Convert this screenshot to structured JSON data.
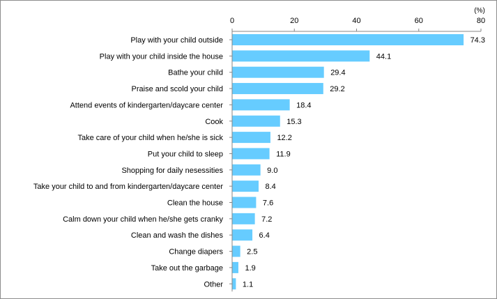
{
  "chart_data": {
    "type": "bar",
    "orientation": "horizontal",
    "title": "",
    "xlabel": "",
    "ylabel": "",
    "unit": "(%)",
    "xlim": [
      0,
      80
    ],
    "ticks": [
      0,
      20,
      40,
      60,
      80
    ],
    "tick_labels": [
      "0",
      "20",
      "40",
      "60",
      "80"
    ],
    "grid": false,
    "bar_color": "#66CCFF",
    "categories": [
      "Play with your child outside",
      "Play with your child inside the house",
      "Bathe your child",
      "Praise and scold your child",
      "Attend events of kindergarten/daycare center",
      "Cook",
      "Take care of your child when he/she is sick",
      "Put your child to sleep",
      "Shopping for daily nesessities",
      "Take your child to and from kindergarten/daycare center",
      "Clean the house",
      "Calm down your child when he/she gets cranky",
      "Clean and wash the dishes",
      "Change diapers",
      "Take out the garbage",
      "Other"
    ],
    "values": [
      74.3,
      44.1,
      29.4,
      29.2,
      18.4,
      15.3,
      12.2,
      11.9,
      9.0,
      8.4,
      7.6,
      7.2,
      6.4,
      2.5,
      1.9,
      1.1
    ],
    "value_labels": [
      "74.3",
      "44.1",
      "29.4",
      "29.2",
      "18.4",
      "15.3",
      "12.2",
      "11.9",
      "9.0",
      "8.4",
      "7.6",
      "7.2",
      "6.4",
      "2.5",
      "1.9",
      "1.1"
    ]
  }
}
